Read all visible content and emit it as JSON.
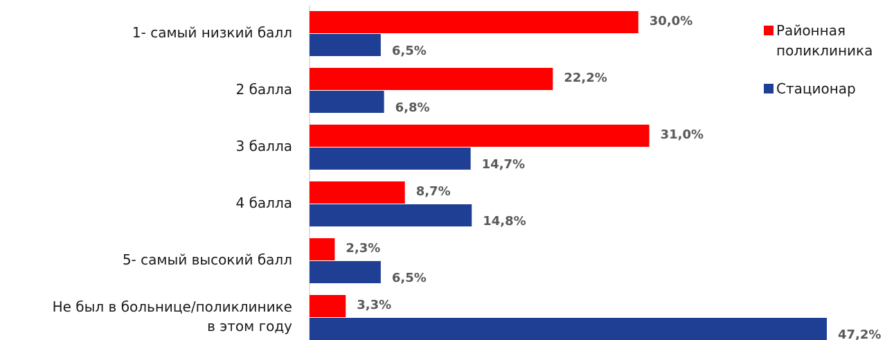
{
  "chart_data": {
    "type": "bar",
    "orientation": "horizontal",
    "categories": [
      "1- самый низкий балл",
      "2 балла",
      "3 балла",
      "4 балла",
      "5- самый высокий балл",
      "Не был в больнице/поликлинике в этом году"
    ],
    "category_lines": [
      [
        "1- самый низкий балл"
      ],
      [
        "2 балла"
      ],
      [
        "3 балла"
      ],
      [
        "4 балла"
      ],
      [
        "5- самый высокий балл"
      ],
      [
        "Не был в больнице/поликлинике",
        "в этом году"
      ]
    ],
    "series": [
      {
        "name": "Районная поликлиника",
        "color": "#ff0000",
        "values": [
          30.0,
          22.2,
          31.0,
          8.7,
          2.3,
          3.3
        ],
        "labels": [
          "30,0%",
          "22,2%",
          "31,0%",
          "8,7%",
          "2,3%",
          "3,3%"
        ]
      },
      {
        "name": "Стационар",
        "color": "#1f3f94",
        "values": [
          6.5,
          6.8,
          14.7,
          14.8,
          6.5,
          47.2
        ],
        "labels": [
          "6,5%",
          "6,8%",
          "14,7%",
          "14,8%",
          "6,5%",
          "47,2%"
        ]
      }
    ],
    "xlim": [
      0,
      47.2
    ],
    "legend_position": "right",
    "grid": false,
    "axis_color": "#d9d9d9"
  },
  "legend": {
    "items": [
      {
        "label": "Районная поликлиника",
        "color": "#ff0000"
      },
      {
        "label": "Стационар",
        "color": "#1f3f94"
      }
    ]
  }
}
